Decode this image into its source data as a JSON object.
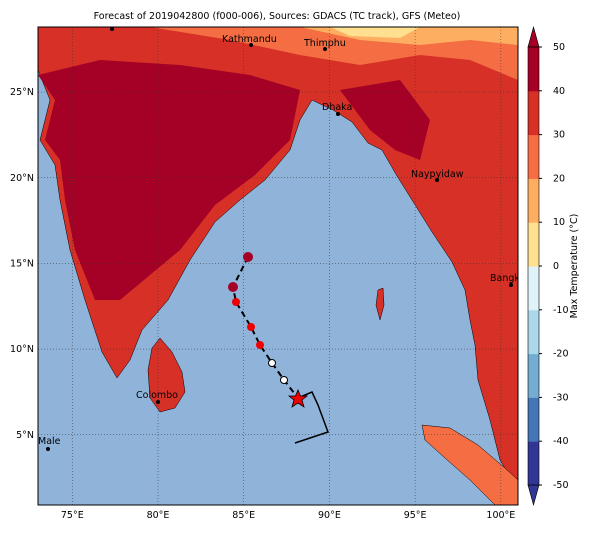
{
  "title": "Forecast of 2019042800 (f000-006), Sources: GDACS (TC track), GFS (Meteo)",
  "map": {
    "xlim": [
      73,
      101
    ],
    "ylim": [
      0.9,
      28.8
    ],
    "xticks": [
      {
        "value": 75,
        "label": "75°E"
      },
      {
        "value": 80,
        "label": "80°E"
      },
      {
        "value": 85,
        "label": "85°E"
      },
      {
        "value": 90,
        "label": "90°E"
      },
      {
        "value": 95,
        "label": "95°E"
      },
      {
        "value": 100,
        "label": "100°E"
      }
    ],
    "yticks": [
      {
        "value": 5,
        "label": "5°N"
      },
      {
        "value": 10,
        "label": "10°N"
      },
      {
        "value": 15,
        "label": "15°N"
      },
      {
        "value": 20,
        "label": "20°N"
      },
      {
        "value": 25,
        "label": "25°N"
      }
    ],
    "cities": [
      "Kathmandu",
      "Thimphu",
      "Dhaka",
      "Naypyidaw",
      "Bangkok",
      "Colombo",
      "Male"
    ]
  },
  "colorbar": {
    "label": "Max Temperature (°C)",
    "lim": [
      -50,
      50
    ],
    "ticks": [
      -50,
      -40,
      -30,
      -20,
      -10,
      0,
      10,
      20,
      30,
      40,
      50
    ],
    "colors": [
      "#313695",
      "#4575b4",
      "#74add1",
      "#abd9e9",
      "#e0f3f8",
      "#fee090",
      "#fdae61",
      "#f46d43",
      "#d73027",
      "#a50026"
    ]
  }
}
